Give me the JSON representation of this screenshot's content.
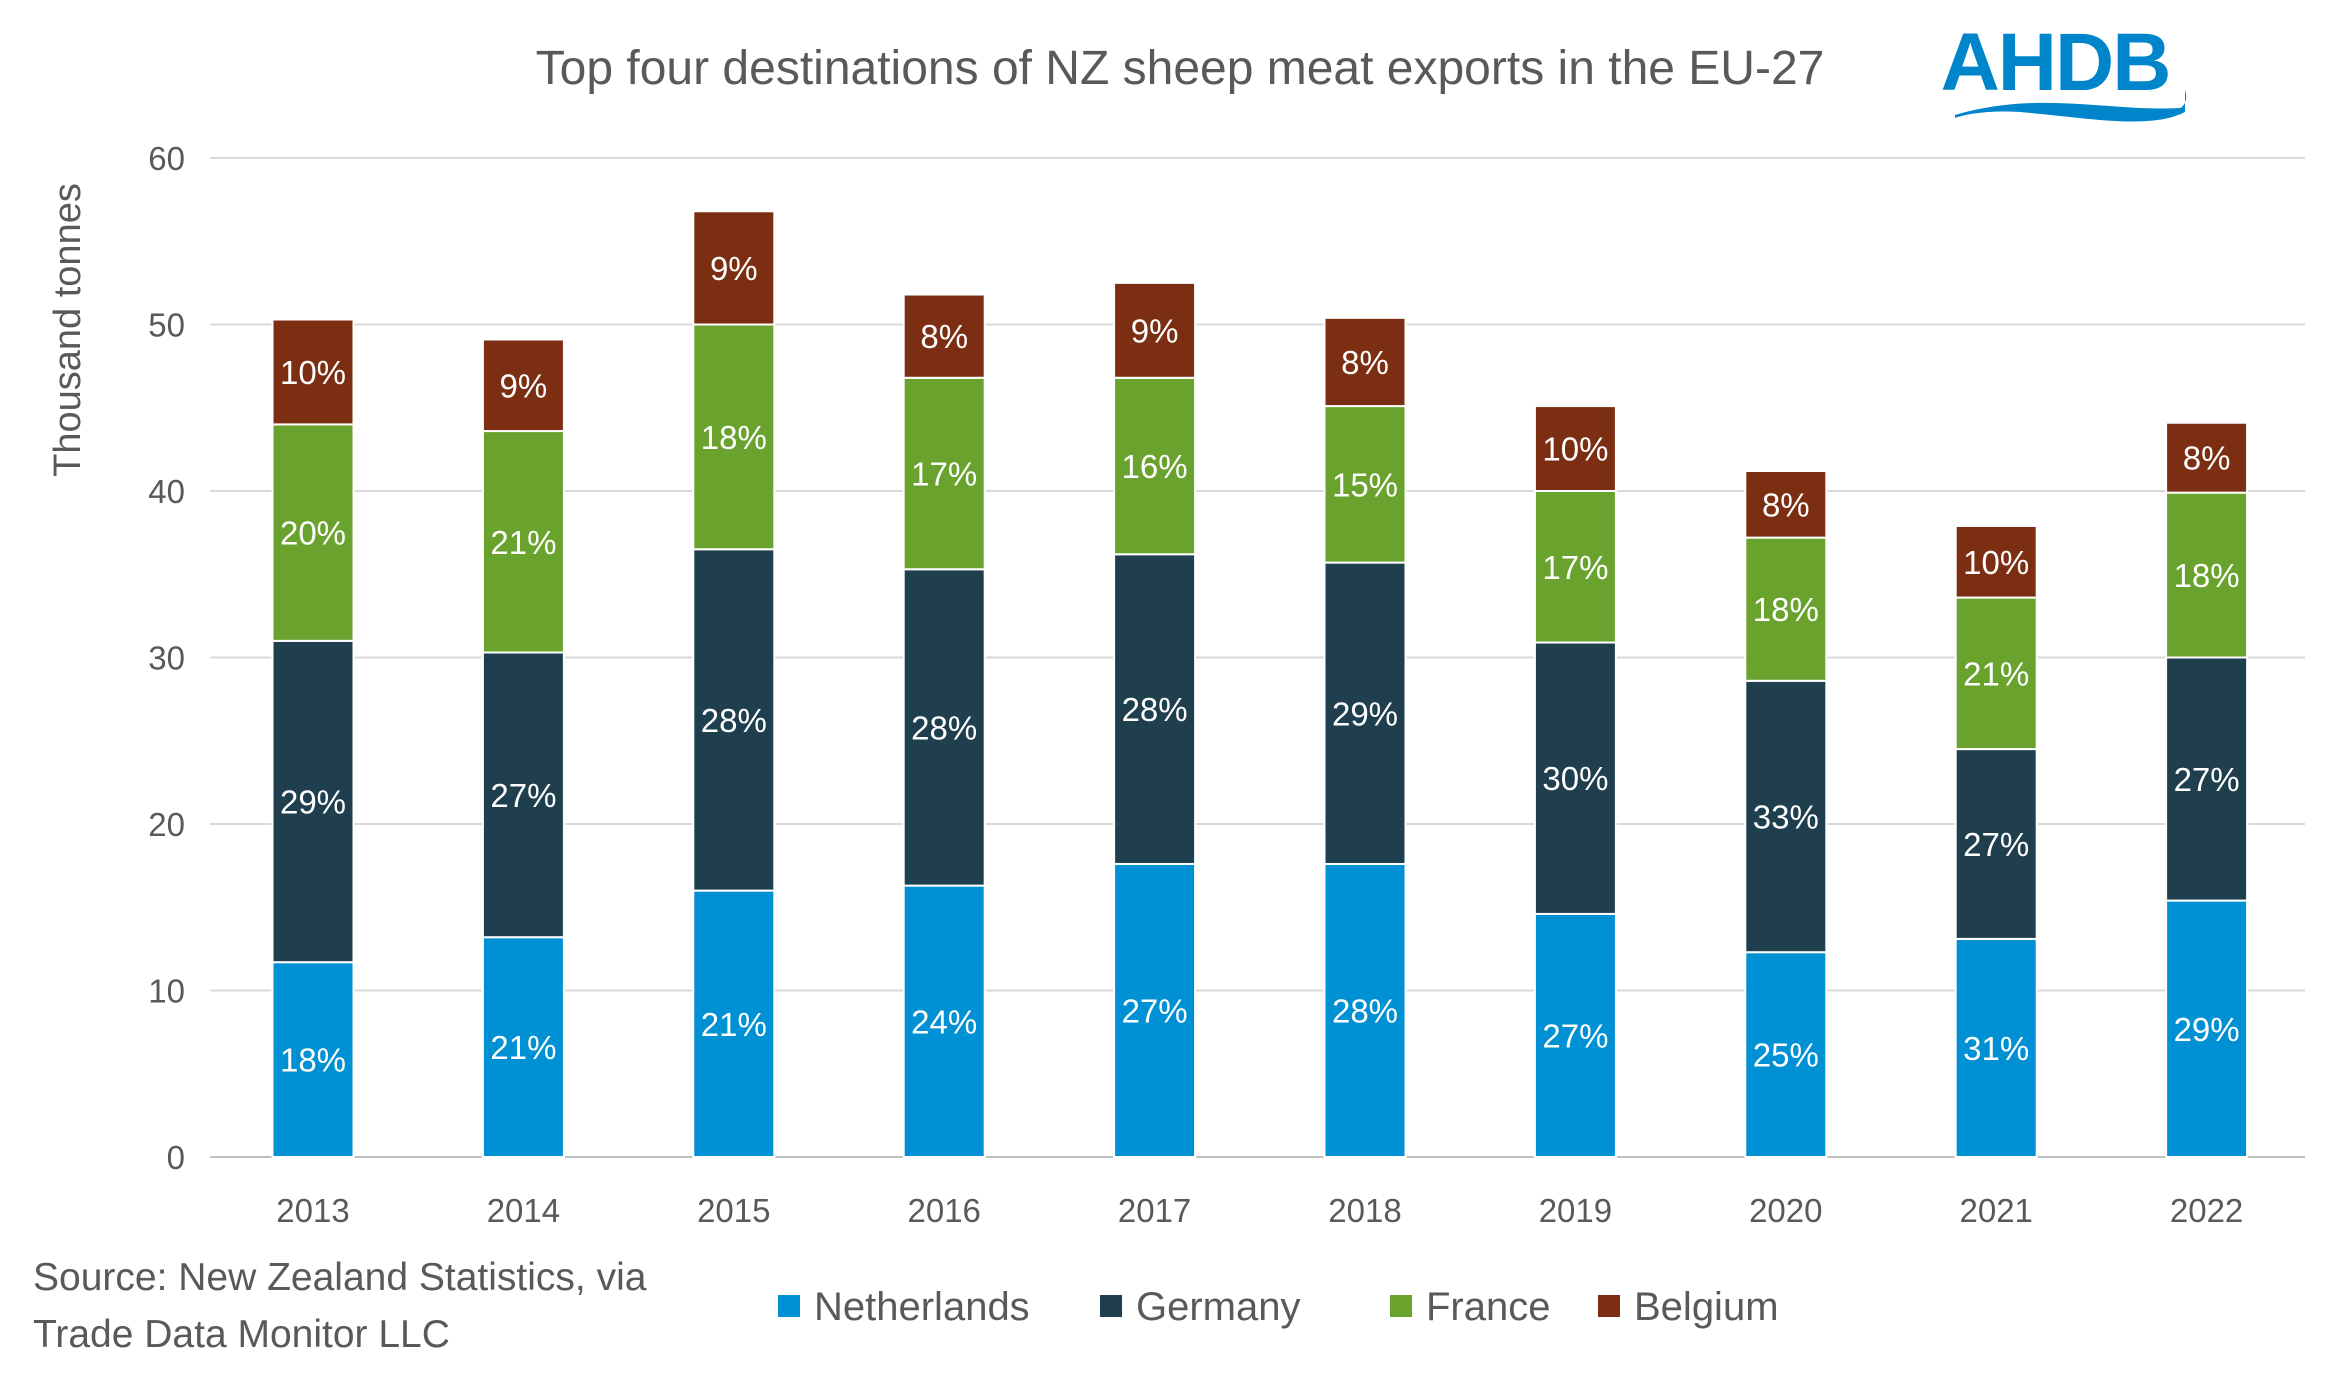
{
  "chart_data": {
    "type": "bar",
    "stacked": true,
    "title": "Top four destinations of NZ sheep meat exports in the EU-27",
    "xlabel": "",
    "ylabel": "Thousand tonnes",
    "ylim": [
      0,
      60
    ],
    "yticks": [
      0,
      10,
      20,
      30,
      40,
      50,
      60
    ],
    "grid": true,
    "legend_position": "bottom",
    "categories": [
      "2013",
      "2014",
      "2015",
      "2016",
      "2017",
      "2018",
      "2019",
      "2020",
      "2021",
      "2022"
    ],
    "series": [
      {
        "name": "Netherlands",
        "color": "#0090D4",
        "values": [
          11.7,
          13.2,
          16.0,
          16.3,
          17.6,
          17.6,
          14.6,
          12.3,
          13.1,
          15.4
        ],
        "labels": [
          "18%",
          "21%",
          "21%",
          "24%",
          "27%",
          "28%",
          "27%",
          "25%",
          "31%",
          "29%"
        ]
      },
      {
        "name": "Germany",
        "color": "#1F3F4F",
        "values": [
          19.3,
          17.1,
          20.5,
          19.0,
          18.6,
          18.1,
          16.3,
          16.3,
          11.4,
          14.6
        ],
        "labels": [
          "29%",
          "27%",
          "28%",
          "28%",
          "28%",
          "29%",
          "30%",
          "33%",
          "27%",
          "27%"
        ]
      },
      {
        "name": "France",
        "color": "#6AA22E",
        "values": [
          13.0,
          13.3,
          13.5,
          11.5,
          10.6,
          9.4,
          9.1,
          8.6,
          9.1,
          9.9
        ],
        "labels": [
          "20%",
          "21%",
          "18%",
          "17%",
          "16%",
          "15%",
          "17%",
          "18%",
          "21%",
          "18%"
        ]
      },
      {
        "name": "Belgium",
        "color": "#7B2E12",
        "values": [
          6.3,
          5.5,
          6.8,
          5.0,
          5.7,
          5.3,
          5.1,
          4.0,
          4.3,
          4.2
        ],
        "labels": [
          "10%",
          "9%",
          "9%",
          "8%",
          "9%",
          "8%",
          "10%",
          "8%",
          "10%",
          "8%"
        ]
      }
    ]
  },
  "source": {
    "line1": "Source: New Zealand Statistics, via",
    "line2": "Trade Data Monitor LLC"
  },
  "logo": {
    "text": "AHDB",
    "color": "#0085CA"
  }
}
